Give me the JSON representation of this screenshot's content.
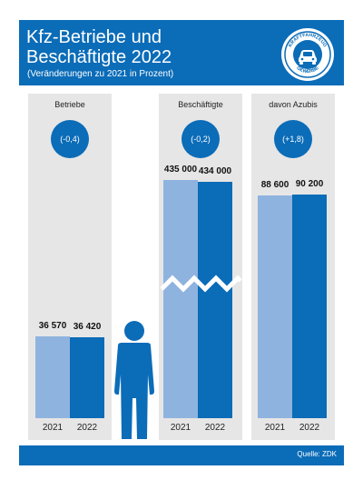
{
  "header": {
    "title_line1": "Kfz-Betriebe und",
    "title_line2": "Beschäftigte 2022",
    "subtitle": "(Veränderungen zu 2021 in Prozent)"
  },
  "logo": {
    "top_text": "KRAFTFAHRZEUG",
    "bottom_text": "GEWERBE",
    "icon": "car-icon"
  },
  "footer": {
    "source": "Quelle: ZDK"
  },
  "colors": {
    "header": "#0b6cb8",
    "bar_2021": "#8fb3df",
    "bar_2022": "#0b6cb8",
    "panel": "#e6e6e6"
  },
  "chart_data": [
    {
      "type": "bar",
      "panel": "Betriebe",
      "change": "(-0,4)",
      "categories": [
        "2021",
        "2022"
      ],
      "values": [
        36570,
        36420
      ],
      "value_labels": [
        "36 570",
        "36 420"
      ]
    },
    {
      "type": "bar",
      "panel": "Beschäftigte",
      "change": "(-0,2)",
      "categories": [
        "2021",
        "2022"
      ],
      "values": [
        435000,
        434000
      ],
      "value_labels": [
        "435 000",
        "434 000"
      ],
      "axis_break": true
    },
    {
      "type": "bar",
      "panel": "davon Azubis",
      "change": "(+1,8)",
      "categories": [
        "2021",
        "2022"
      ],
      "values": [
        88600,
        90200
      ],
      "value_labels": [
        "88 600",
        "90 200"
      ]
    }
  ]
}
